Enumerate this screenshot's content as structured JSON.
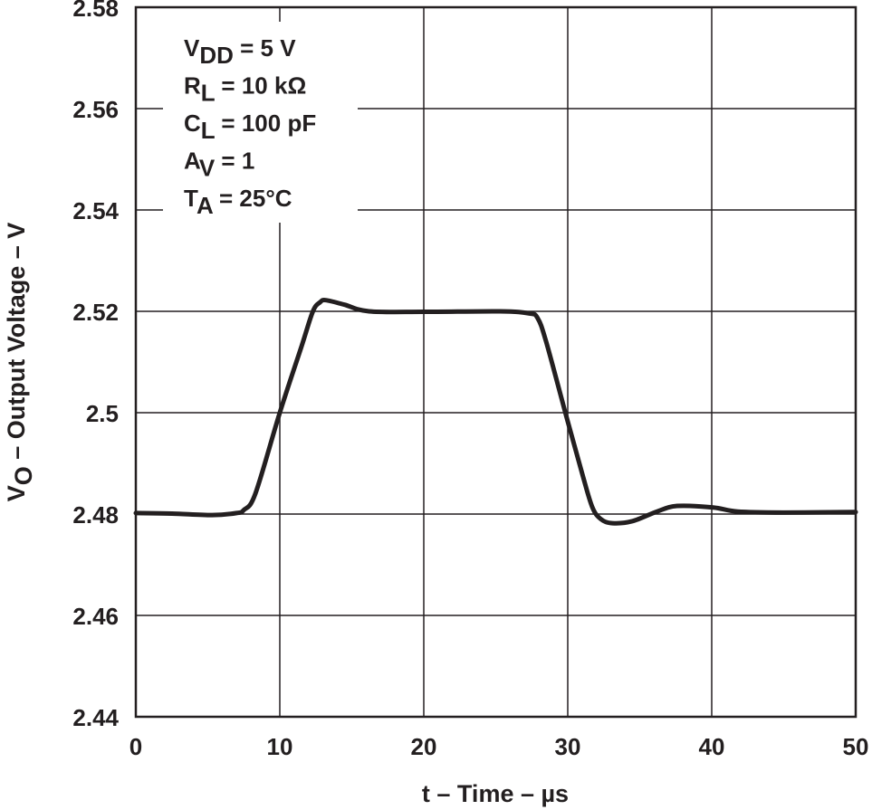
{
  "chart_data": {
    "type": "line",
    "xlabel": "t – Time – µs",
    "ylabel_main": "V",
    "ylabel_sub": "O",
    "ylabel_rest": " – Output Voltage – V",
    "xlim": [
      0,
      50
    ],
    "ylim": [
      2.44,
      2.58
    ],
    "x_ticks": [
      0,
      10,
      20,
      30,
      40,
      50
    ],
    "x_tick_labels": [
      "0",
      "10",
      "20",
      "30",
      "40",
      "50"
    ],
    "y_ticks": [
      2.44,
      2.46,
      2.48,
      2.5,
      2.52,
      2.54,
      2.56,
      2.58
    ],
    "y_tick_labels": [
      "2.44",
      "2.46",
      "2.48",
      "2.5",
      "2.52",
      "2.54",
      "2.56",
      "2.58"
    ],
    "grid": true,
    "line_color": "#231f20",
    "series": [
      {
        "x": [
          0,
          2.5,
          5.3,
          7.0,
          7.5,
          8.3,
          10.0,
          11.5,
          12.3,
          12.8,
          13.2,
          14.5,
          16.2,
          20,
          25.3,
          27.3,
          27.9,
          28.5,
          29.9,
          31.0,
          31.7,
          32.3,
          33.1,
          34.5,
          36.2,
          37.6,
          40.1,
          41.8,
          45,
          50
        ],
        "y": [
          2.4802,
          2.4801,
          2.4798,
          2.4802,
          2.4808,
          2.484,
          2.5,
          2.513,
          2.52,
          2.5218,
          2.5222,
          2.5213,
          2.52,
          2.5199,
          2.52,
          2.5196,
          2.5187,
          2.514,
          2.4993,
          2.488,
          2.4814,
          2.479,
          2.4782,
          2.4786,
          2.4805,
          2.4816,
          2.4813,
          2.4805,
          2.4803,
          2.4804
        ]
      }
    ],
    "annotations": [
      {
        "main": "V",
        "sub": "DD",
        "rest": " = 5 V"
      },
      {
        "main": "R",
        "sub": "L",
        "rest": " = 10 kΩ"
      },
      {
        "main": "C",
        "sub": "L",
        "rest": " = 100 pF"
      },
      {
        "main": "A",
        "sub": "V",
        "rest": " = 1"
      },
      {
        "main": "T",
        "sub": "A",
        "rest": " = 25°C"
      }
    ]
  }
}
